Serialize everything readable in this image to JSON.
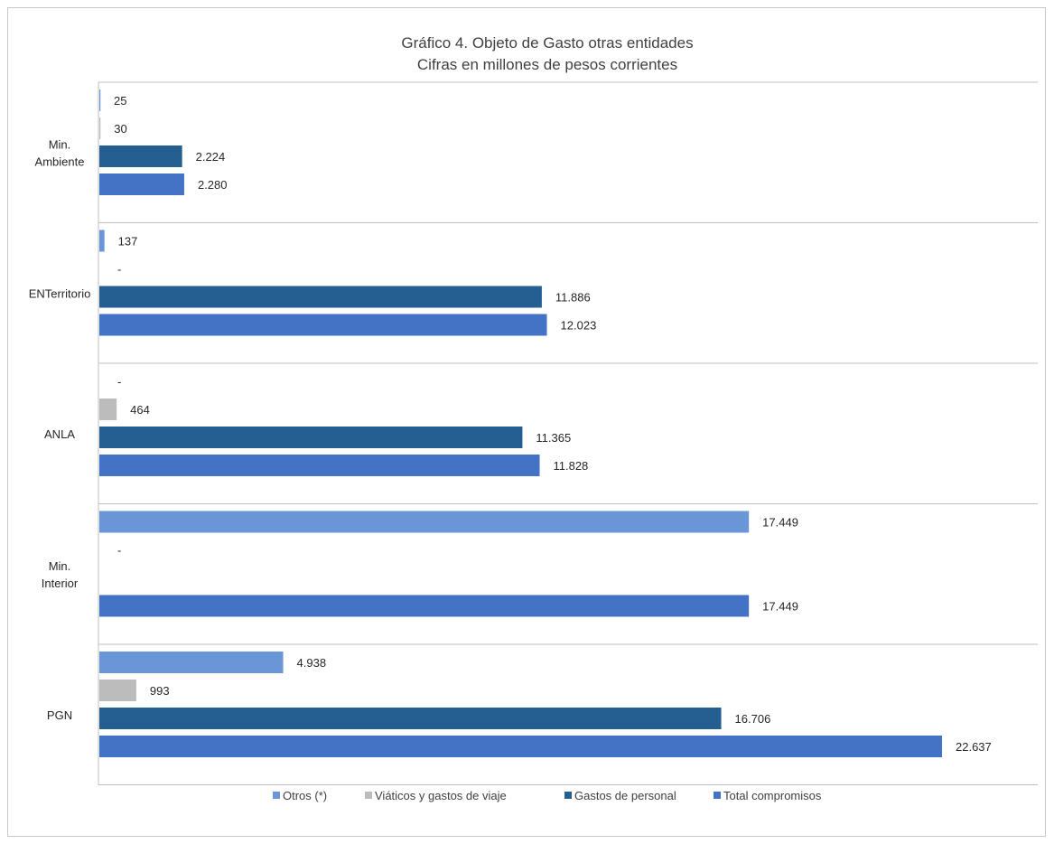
{
  "chart_data": {
    "type": "bar",
    "orientation": "horizontal",
    "title": "Gráfico 4. Objeto de Gasto otras entidades",
    "subtitle": "Cifras en millones de pesos corrientes",
    "categories": [
      [
        "Min.",
        "Ambiente"
      ],
      [
        "ENTerritorio"
      ],
      [
        "ANLA"
      ],
      [
        "Min.",
        "Interior"
      ],
      [
        "PGN"
      ]
    ],
    "series": [
      {
        "name": "Otros (*)",
        "color": "#6a96d7",
        "values": [
          25,
          137,
          0,
          17449,
          4938
        ],
        "labels": [
          "25",
          "137",
          "-",
          "17.449",
          "4.938"
        ]
      },
      {
        "name": "Viáticos y gastos de viaje",
        "color": "#bcbcbc",
        "values": [
          30,
          0,
          464,
          0,
          993
        ],
        "labels": [
          "30",
          "-",
          "464",
          "-",
          "993"
        ]
      },
      {
        "name": "Gastos de personal",
        "color": "#255e91",
        "values": [
          2224,
          11886,
          11365,
          0,
          16706
        ],
        "labels": [
          "2.224",
          "11.886",
          "11.365",
          "",
          "16.706"
        ]
      },
      {
        "name": "Total compromisos",
        "color": "#4472c4",
        "values": [
          2280,
          12023,
          11828,
          17449,
          22637
        ],
        "labels": [
          "2.280",
          "12.023",
          "11.828",
          "17.449",
          "22.637"
        ]
      }
    ],
    "xlim": [
      0,
      25000
    ],
    "grid": "horizontal-separators",
    "legend": "bottom"
  }
}
